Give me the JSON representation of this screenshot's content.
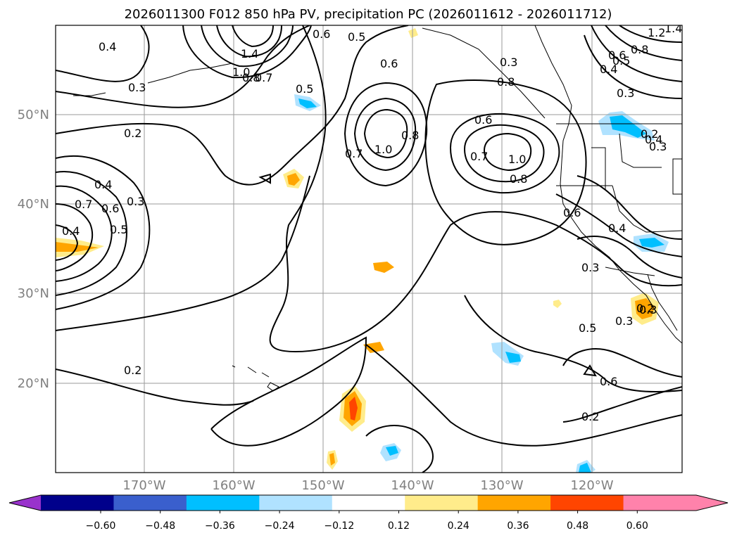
{
  "title": "2026011300 F012 850 hPa PV, precipitation PC (2026011612 - 2026011712)",
  "lat_labels": [
    "50°N",
    "40°N",
    "30°N",
    "20°N"
  ],
  "lon_labels": [
    "170°W",
    "160°W",
    "150°W",
    "140°W",
    "130°W",
    "120°W"
  ],
  "contour_labels": [
    "0.4",
    "0.3",
    "0.2",
    "0.4",
    "0.3",
    "0.7",
    "0.6",
    "0.5",
    "0.4",
    "1.4",
    "1.0",
    "0.8",
    "0.7",
    "0.6",
    "0.5",
    "0.5",
    "0.6",
    "0.8",
    "1.0",
    "0.7",
    "0.6",
    "0.7",
    "1.0",
    "0.8",
    "0.3",
    "0.8",
    "0.6",
    "0.4",
    "0.3",
    "0.2",
    "0.6",
    "0.4",
    "0.3",
    "0.3",
    "0.5",
    "0.6",
    "0.2",
    "0.2",
    "1.2",
    "1.4",
    "0.8",
    "0.5",
    "0.4",
    "0.3",
    "0.3",
    "0.2"
  ],
  "colorbar": {
    "ticks": [
      "−0.60",
      "−0.48",
      "−0.36",
      "−0.24",
      "−0.12",
      "0.12",
      "0.24",
      "0.36",
      "0.48",
      "0.60"
    ],
    "colors": [
      "#9932CC",
      "#00008B",
      "#3A5FCD",
      "#00BFFF",
      "#B0E2FF",
      "#FFFFFF",
      "#FFEC8B",
      "#FFA500",
      "#FF4500",
      "#B22222",
      "#FF82AB"
    ]
  }
}
